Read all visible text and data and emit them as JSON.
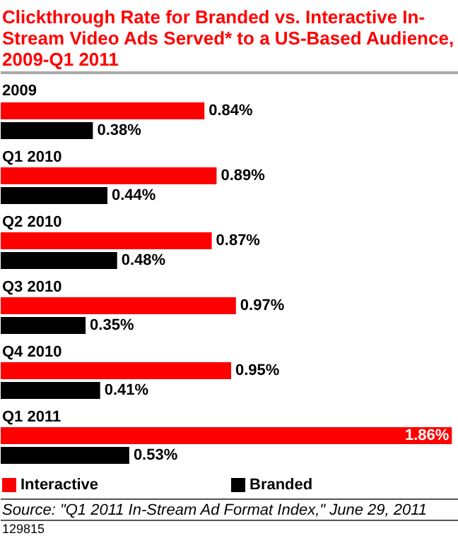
{
  "chart_data": {
    "type": "bar",
    "orientation": "horizontal",
    "title": "Clickthrough Rate for Branded vs. Interactive In-Stream Video Ads Served* to a US-Based Audience, 2009-Q1 2011",
    "categories": [
      "2009",
      "Q1 2010",
      "Q2 2010",
      "Q3 2010",
      "Q4 2010",
      "Q1 2011"
    ],
    "series": [
      {
        "name": "Interactive",
        "color": "#ff0000",
        "values": [
          0.84,
          0.89,
          0.87,
          0.97,
          0.95,
          1.86
        ],
        "value_labels": [
          "0.84%",
          "0.89%",
          "0.87%",
          "0.97%",
          "0.95%",
          "1.86%"
        ]
      },
      {
        "name": "Branded",
        "color": "#000000",
        "values": [
          0.38,
          0.44,
          0.48,
          0.35,
          0.41,
          0.53
        ],
        "value_labels": [
          "0.38%",
          "0.44%",
          "0.48%",
          "0.35%",
          "0.41%",
          "0.53%"
        ]
      }
    ],
    "legend": "bottom",
    "annotations": [
      "Source: \"Q1 2011 In-Stream Ad Format Index,\" June 29, 2011",
      "129815"
    ]
  }
}
